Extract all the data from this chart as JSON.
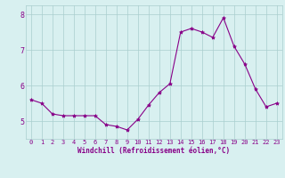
{
  "x": [
    0,
    1,
    2,
    3,
    4,
    5,
    6,
    7,
    8,
    9,
    10,
    11,
    12,
    13,
    14,
    15,
    16,
    17,
    18,
    19,
    20,
    21,
    22,
    23
  ],
  "y": [
    5.6,
    5.5,
    5.2,
    5.15,
    5.15,
    5.15,
    5.15,
    4.9,
    4.85,
    4.75,
    5.05,
    5.45,
    5.8,
    6.05,
    7.5,
    7.6,
    7.5,
    7.35,
    7.9,
    7.1,
    6.6,
    5.9,
    5.4,
    5.5
  ],
  "line_color": "#880088",
  "marker": "*",
  "marker_size": 3,
  "bg_color": "#d8f0f0",
  "grid_color": "#aacece",
  "xlabel": "Windchill (Refroidissement éolien,°C)",
  "xlabel_color": "#880088",
  "tick_color": "#880088",
  "ylim": [
    4.5,
    8.25
  ],
  "xlim": [
    -0.5,
    23.5
  ],
  "yticks": [
    5,
    6,
    7,
    8
  ],
  "xticks": [
    0,
    1,
    2,
    3,
    4,
    5,
    6,
    7,
    8,
    9,
    10,
    11,
    12,
    13,
    14,
    15,
    16,
    17,
    18,
    19,
    20,
    21,
    22,
    23
  ],
  "figsize": [
    3.2,
    2.0
  ],
  "dpi": 100
}
